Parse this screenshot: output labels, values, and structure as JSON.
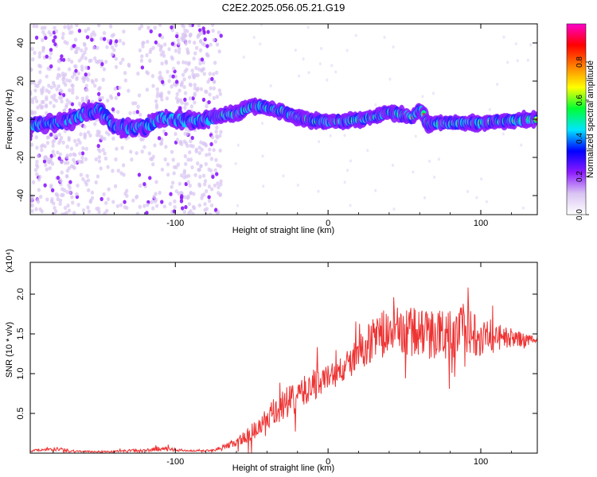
{
  "title": "C2E2.2025.056.05.21.G19",
  "chart_data": [
    {
      "type": "heatmap",
      "xlabel": "Height of straight line (km)",
      "ylabel": "Frequency (Hz)",
      "xlim": [
        -195,
        137
      ],
      "ylim": [
        -50,
        50
      ],
      "x_ticks": [
        -100,
        0,
        100
      ],
      "y_ticks": [
        -40,
        -20,
        0,
        20,
        40
      ],
      "colorbar": {
        "label": "Normalized spectral amplitude",
        "range": [
          0.0,
          1.0
        ],
        "ticks": [
          "0.0",
          "0.2",
          "0.4",
          "0.6",
          "0.8"
        ],
        "colors": [
          "#ffffff",
          "#d9c4f2",
          "#8c1aff",
          "#0000ff",
          "#00e5ff",
          "#00ff33",
          "#ffff00",
          "#ff8000",
          "#ff0000",
          "#ff00cc"
        ]
      },
      "ridge": {
        "x": [
          -195,
          -180,
          -170,
          -160,
          -150,
          -140,
          -130,
          -120,
          -110,
          -100,
          -90,
          -80,
          -70,
          -60,
          -50,
          -45,
          -40,
          -35,
          -30,
          -20,
          -10,
          0,
          10,
          20,
          30,
          40,
          45,
          50,
          55,
          60,
          62,
          65,
          70,
          80,
          90,
          100,
          110,
          120,
          130,
          137
        ],
        "y": [
          -3,
          -2,
          -1,
          3,
          5,
          -3,
          -5,
          -4,
          0,
          0,
          -1,
          0,
          2,
          3,
          7,
          7,
          6,
          5,
          4,
          1,
          -1,
          -1,
          -1,
          0,
          1,
          4,
          3,
          2,
          1,
          5,
          4,
          -3,
          -2,
          -2,
          -2,
          -2,
          -1,
          -1,
          0,
          0
        ]
      }
    },
    {
      "type": "line",
      "xlabel": "Height of straight line (km)",
      "ylabel": "SNR (10 * v/v)",
      "multiplier": "(x10⁴)",
      "xlim": [
        -195,
        137
      ],
      "ylim": [
        0,
        2.4
      ],
      "x_ticks": [
        -100,
        0,
        100
      ],
      "y_ticks": [
        0.5,
        1.0,
        1.5,
        2.0
      ],
      "series": [
        {
          "color": "#ee3333",
          "x": [
            -195,
            -180,
            -170,
            -160,
            -150,
            -140,
            -130,
            -120,
            -110,
            -100,
            -90,
            -80,
            -75,
            -70,
            -65,
            -60,
            -55,
            -50,
            -45,
            -40,
            -35,
            -30,
            -25,
            -20,
            -15,
            -10,
            -5,
            0,
            5,
            10,
            15,
            20,
            25,
            30,
            35,
            40,
            50,
            60,
            70,
            80,
            90,
            100,
            110,
            120,
            130,
            137
          ],
          "y": [
            0.03,
            0.06,
            0.03,
            0.02,
            0.02,
            0.02,
            0.03,
            0.03,
            0.06,
            0.04,
            0.03,
            0.03,
            0.04,
            0.06,
            0.1,
            0.14,
            0.2,
            0.25,
            0.32,
            0.4,
            0.5,
            0.58,
            0.65,
            0.72,
            0.78,
            0.85,
            0.9,
            0.95,
            1.0,
            1.05,
            1.15,
            1.25,
            1.35,
            1.45,
            1.5,
            1.5,
            1.55,
            1.5,
            1.5,
            1.5,
            1.55,
            1.5,
            1.45,
            1.45,
            1.42,
            1.4
          ],
          "noise": [
            0.01,
            0.03,
            0.02,
            0.01,
            0.01,
            0.01,
            0.02,
            0.02,
            0.03,
            0.02,
            0.01,
            0.01,
            0.02,
            0.03,
            0.04,
            0.06,
            0.08,
            0.12,
            0.15,
            0.18,
            0.2,
            0.2,
            0.2,
            0.2,
            0.2,
            0.2,
            0.18,
            0.18,
            0.18,
            0.18,
            0.2,
            0.22,
            0.25,
            0.28,
            0.3,
            0.3,
            0.32,
            0.32,
            0.32,
            0.32,
            0.32,
            0.28,
            0.2,
            0.12,
            0.08,
            0.05
          ]
        }
      ]
    }
  ]
}
